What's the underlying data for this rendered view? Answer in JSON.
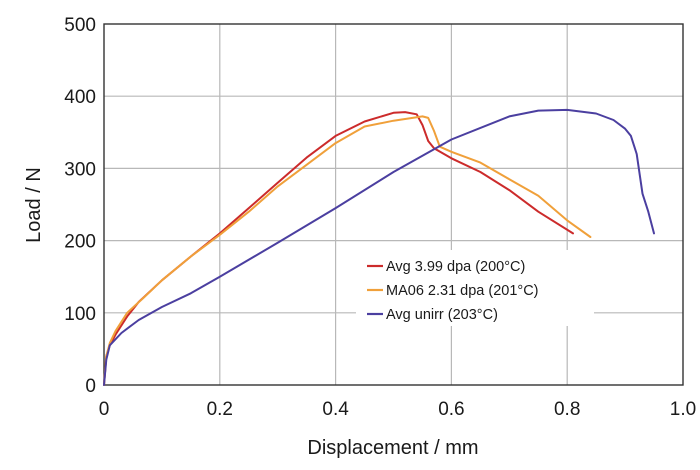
{
  "chart_data": {
    "type": "line",
    "xlabel": "Displacement / mm",
    "ylabel": "Load / N",
    "xlim": [
      0,
      1.0
    ],
    "ylim": [
      0,
      500
    ],
    "x_ticks": [
      "0",
      "0.2",
      "0.4",
      "0.6",
      "0.8",
      "1.0"
    ],
    "y_ticks": [
      "0",
      "100",
      "200",
      "300",
      "400",
      "500"
    ],
    "grid": true,
    "legend_position": "center-right",
    "series": [
      {
        "name": "Avg 3.99 dpa (200°C)",
        "color": "#cc2b2b",
        "x": [
          0,
          0.004,
          0.01,
          0.02,
          0.04,
          0.06,
          0.1,
          0.15,
          0.2,
          0.25,
          0.3,
          0.35,
          0.4,
          0.45,
          0.5,
          0.52,
          0.54,
          0.55,
          0.56,
          0.57,
          0.6,
          0.65,
          0.7,
          0.75,
          0.81
        ],
        "y": [
          0,
          40,
          55,
          70,
          95,
          115,
          145,
          178,
          210,
          245,
          280,
          315,
          345,
          365,
          377,
          378,
          375,
          360,
          338,
          328,
          314,
          295,
          270,
          240,
          210
        ]
      },
      {
        "name": "MA06 2.31 dpa (201°C)",
        "color": "#f0a03a",
        "x": [
          0,
          0.004,
          0.01,
          0.02,
          0.04,
          0.07,
          0.1,
          0.15,
          0.2,
          0.25,
          0.3,
          0.35,
          0.4,
          0.45,
          0.5,
          0.55,
          0.56,
          0.57,
          0.58,
          0.6,
          0.65,
          0.7,
          0.75,
          0.8,
          0.84
        ],
        "y": [
          0,
          40,
          58,
          75,
          100,
          122,
          145,
          178,
          208,
          240,
          275,
          305,
          335,
          358,
          366,
          372,
          370,
          352,
          330,
          323,
          308,
          285,
          262,
          228,
          205
        ]
      },
      {
        "name": "Avg unirr (203°C)",
        "color": "#4b3fa0",
        "x": [
          0,
          0.004,
          0.01,
          0.03,
          0.06,
          0.1,
          0.15,
          0.2,
          0.3,
          0.4,
          0.5,
          0.6,
          0.7,
          0.75,
          0.8,
          0.85,
          0.88,
          0.9,
          0.91,
          0.92,
          0.93,
          0.94,
          0.95
        ],
        "y": [
          0,
          35,
          55,
          72,
          90,
          108,
          127,
          150,
          197,
          245,
          295,
          340,
          372,
          380,
          381,
          376,
          367,
          355,
          345,
          320,
          265,
          240,
          210
        ]
      }
    ]
  }
}
